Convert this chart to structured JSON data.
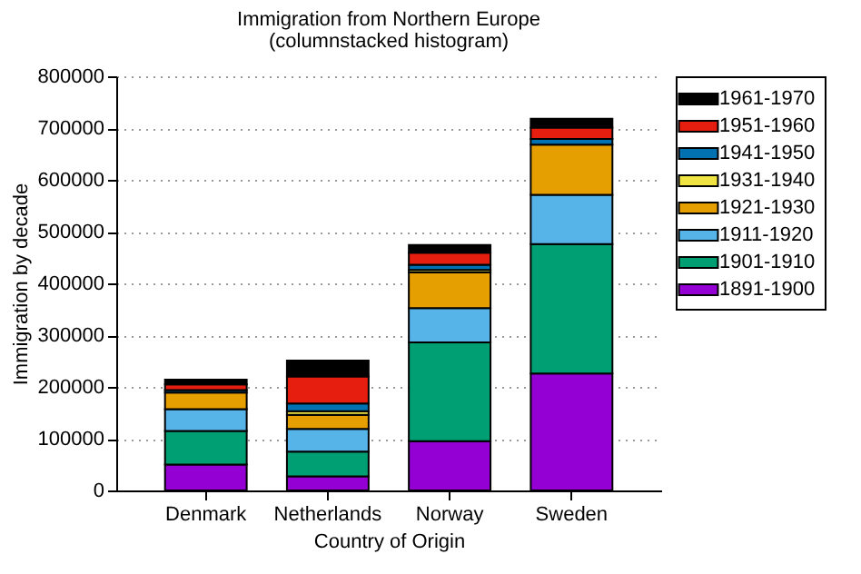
{
  "chart_data": {
    "type": "bar",
    "title": "Immigration from Northern Europe",
    "subtitle": "(columnstacked histogram)",
    "xlabel": "Country of Origin",
    "ylabel": "Immigration by decade",
    "categories": [
      "Denmark",
      "Netherlands",
      "Norway",
      "Sweden"
    ],
    "stacked": true,
    "series": [
      {
        "name": "1891-1900",
        "color": "#9400d3",
        "values": [
          50000,
          27000,
          95000,
          226000
        ]
      },
      {
        "name": "1901-1910",
        "color": "#009e73",
        "values": [
          65000,
          48000,
          191000,
          250000
        ]
      },
      {
        "name": "1911-1920",
        "color": "#56b4e9",
        "values": [
          42000,
          44000,
          66000,
          95000
        ]
      },
      {
        "name": "1921-1930",
        "color": "#e69f00",
        "values": [
          32000,
          27000,
          69000,
          97000
        ]
      },
      {
        "name": "1931-1940",
        "color": "#f0e442",
        "values": [
          null,
          7000,
          5000,
          null
        ]
      },
      {
        "name": "1941-1950",
        "color": "#0072b2",
        "values": [
          5000,
          15000,
          10000,
          11000
        ]
      },
      {
        "name": "1951-1960",
        "color": "#e51e10",
        "values": [
          11000,
          52000,
          23000,
          22000
        ]
      },
      {
        "name": "1961-1970",
        "color": "#000000",
        "values": [
          9000,
          31000,
          15000,
          17000
        ]
      }
    ],
    "ylim": [
      0,
      800000
    ],
    "yticks": [
      0,
      100000,
      200000,
      300000,
      400000,
      500000,
      600000,
      700000,
      800000
    ],
    "grid": "y",
    "legend": "top right"
  }
}
